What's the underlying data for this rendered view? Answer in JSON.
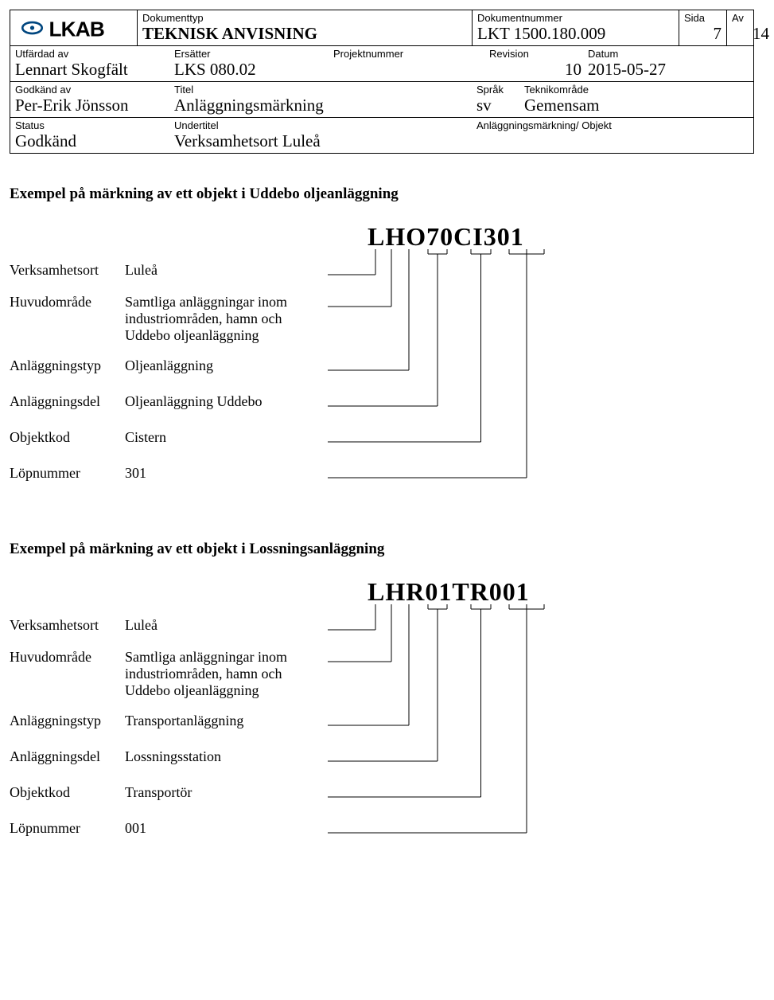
{
  "header": {
    "logo_text": "LKAB",
    "dokumenttyp_label": "Dokumenttyp",
    "dokumenttyp_value": "TEKNISK ANVISNING",
    "dokumentnummer_label": "Dokumentnummer",
    "dokumentnummer_value": "LKT 1500.180.009",
    "sida_label": "Sida",
    "sida_value": "7",
    "av_label": "Av",
    "av_value": "14",
    "utfardad_label": "Utfärdad av",
    "utfardad_value": "Lennart Skogfält",
    "ersatter_label": "Ersätter",
    "ersatter_value": "LKS 080.02",
    "projektnummer_label": "Projektnummer",
    "projektnummer_value": "",
    "revision_label": "Revision",
    "revision_value": "10",
    "datum_label": "Datum",
    "datum_value": "2015-05-27",
    "godkand_av_label": "Godkänd av",
    "godkand_av_value": "Per-Erik Jönsson",
    "titel_label": "Titel",
    "titel_value": "Anläggningsmärkning",
    "sprak_label": "Språk",
    "sprak_value": "sv",
    "teknikomrade_label": "Teknikområde",
    "teknikomrade_value": "Gemensam",
    "status_label": "Status",
    "status_value": "Godkänd",
    "undertitel_label": "Undertitel",
    "undertitel_value": "Verksamhetsort Luleå",
    "right_note": "Anläggningsmärkning/ Objekt"
  },
  "ex1": {
    "title": "Exempel på märkning av ett objekt i Uddebo oljeanläggning",
    "code": "LHO70CI301",
    "rows": [
      {
        "label": "Verksamhetsort",
        "value": "Luleå"
      },
      {
        "label": "Huvudområde",
        "value": "Samtliga anläggningar inom industriområden, hamn och Uddebo oljeanläggning"
      },
      {
        "label": "Anläggningstyp",
        "value": "Oljeanläggning"
      },
      {
        "label": "Anläggningsdel",
        "value": "Oljeanläggning Uddebo"
      },
      {
        "label": "Objektkod",
        "value": "Cistern"
      },
      {
        "label": "Löpnummer",
        "value": "301"
      }
    ]
  },
  "ex2": {
    "title": "Exempel på märkning av ett objekt i Lossningsanläggning",
    "code": "LHR01TR001",
    "rows": [
      {
        "label": "Verksamhetsort",
        "value": "Luleå"
      },
      {
        "label": "Huvudområde",
        "value": "Samtliga anläggningar inom industriområden, hamn och Uddebo oljeanläggning"
      },
      {
        "label": "Anläggningstyp",
        "value": "Transportanläggning"
      },
      {
        "label": "Anläggningsdel",
        "value": "Lossningsstation"
      },
      {
        "label": "Objektkod",
        "value": "Transportör"
      },
      {
        "label": "Löpnummer",
        "value": "001"
      }
    ]
  },
  "diagram_style": {
    "line_color": "#000000",
    "line_width": 1,
    "char_targets_x": [
      10,
      30,
      52,
      76,
      100,
      130,
      155,
      178,
      200,
      222
    ]
  }
}
